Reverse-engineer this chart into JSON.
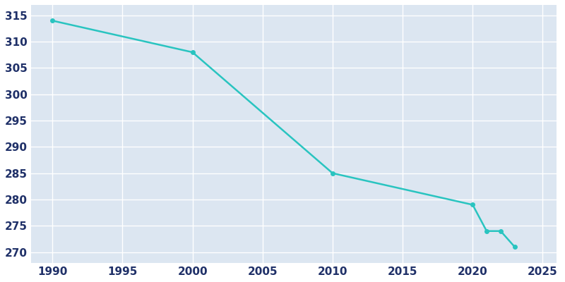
{
  "years": [
    1990,
    2000,
    2010,
    2020,
    2021,
    2022,
    2023
  ],
  "population": [
    314,
    308,
    285,
    279,
    274,
    274,
    271
  ],
  "line_color": "#29c4c0",
  "bg_color": "#dce6f1",
  "plot_bg_color": "#dce6f1",
  "fig_bg_color": "#ffffff",
  "grid_color": "#ffffff",
  "tick_color": "#1f3068",
  "xlim": [
    1988.5,
    2026
  ],
  "ylim": [
    268,
    317
  ],
  "xticks": [
    1990,
    1995,
    2000,
    2005,
    2010,
    2015,
    2020,
    2025
  ],
  "yticks": [
    270,
    275,
    280,
    285,
    290,
    295,
    300,
    305,
    310,
    315
  ],
  "linewidth": 1.8,
  "marker": "o",
  "markersize": 4,
  "tick_fontsize": 11
}
